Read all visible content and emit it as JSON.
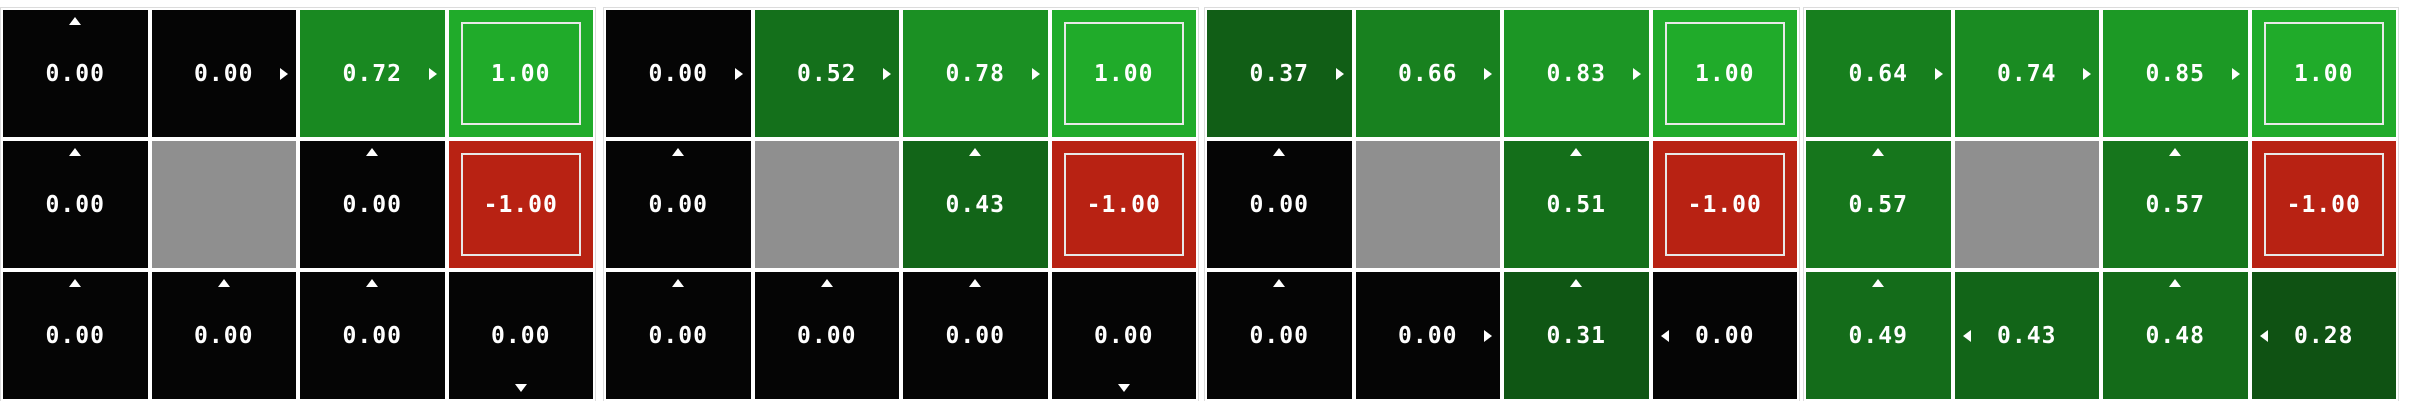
{
  "colors": {
    "zero": "#050505",
    "wall": "#8f8f8f",
    "goal": "#20ab2a",
    "pit": "#b82213",
    "frame": "#e8e8e8",
    "text": "#ffffff",
    "grid_line": "#ffffff"
  },
  "grid": {
    "rows": 3,
    "cols": 4
  },
  "panels": [
    {
      "cells": [
        [
          {
            "value": "0.00",
            "arrow": "up"
          },
          {
            "value": "0.00",
            "arrow": "right"
          },
          {
            "value": "0.72",
            "arrow": "right"
          },
          {
            "value": "1.00",
            "type": "goal"
          }
        ],
        [
          {
            "value": "0.00",
            "arrow": "up"
          },
          {
            "type": "wall"
          },
          {
            "value": "0.00",
            "arrow": "up"
          },
          {
            "value": "-1.00",
            "type": "pit"
          }
        ],
        [
          {
            "value": "0.00",
            "arrow": "up"
          },
          {
            "value": "0.00",
            "arrow": "up"
          },
          {
            "value": "0.00",
            "arrow": "up"
          },
          {
            "value": "0.00",
            "arrow": "down"
          }
        ]
      ]
    },
    {
      "cells": [
        [
          {
            "value": "0.00",
            "arrow": "right"
          },
          {
            "value": "0.52",
            "arrow": "right"
          },
          {
            "value": "0.78",
            "arrow": "right"
          },
          {
            "value": "1.00",
            "type": "goal"
          }
        ],
        [
          {
            "value": "0.00",
            "arrow": "up"
          },
          {
            "type": "wall"
          },
          {
            "value": "0.43",
            "arrow": "up"
          },
          {
            "value": "-1.00",
            "type": "pit"
          }
        ],
        [
          {
            "value": "0.00",
            "arrow": "up"
          },
          {
            "value": "0.00",
            "arrow": "up"
          },
          {
            "value": "0.00",
            "arrow": "up"
          },
          {
            "value": "0.00",
            "arrow": "down"
          }
        ]
      ]
    },
    {
      "cells": [
        [
          {
            "value": "0.37",
            "arrow": "right"
          },
          {
            "value": "0.66",
            "arrow": "right"
          },
          {
            "value": "0.83",
            "arrow": "right"
          },
          {
            "value": "1.00",
            "type": "goal"
          }
        ],
        [
          {
            "value": "0.00",
            "arrow": "up"
          },
          {
            "type": "wall"
          },
          {
            "value": "0.51",
            "arrow": "up"
          },
          {
            "value": "-1.00",
            "type": "pit"
          }
        ],
        [
          {
            "value": "0.00",
            "arrow": "up"
          },
          {
            "value": "0.00",
            "arrow": "right"
          },
          {
            "value": "0.31",
            "arrow": "up"
          },
          {
            "value": "0.00",
            "arrow": "left"
          }
        ]
      ]
    },
    {
      "cells": [
        [
          {
            "value": "0.64",
            "arrow": "right"
          },
          {
            "value": "0.74",
            "arrow": "right"
          },
          {
            "value": "0.85",
            "arrow": "right"
          },
          {
            "value": "1.00",
            "type": "goal"
          }
        ],
        [
          {
            "value": "0.57",
            "arrow": "up"
          },
          {
            "type": "wall"
          },
          {
            "value": "0.57",
            "arrow": "up"
          },
          {
            "value": "-1.00",
            "type": "pit"
          }
        ],
        [
          {
            "value": "0.49",
            "arrow": "up"
          },
          {
            "value": "0.43",
            "arrow": "left"
          },
          {
            "value": "0.48",
            "arrow": "up"
          },
          {
            "value": "0.28",
            "arrow": "left"
          }
        ]
      ]
    }
  ]
}
